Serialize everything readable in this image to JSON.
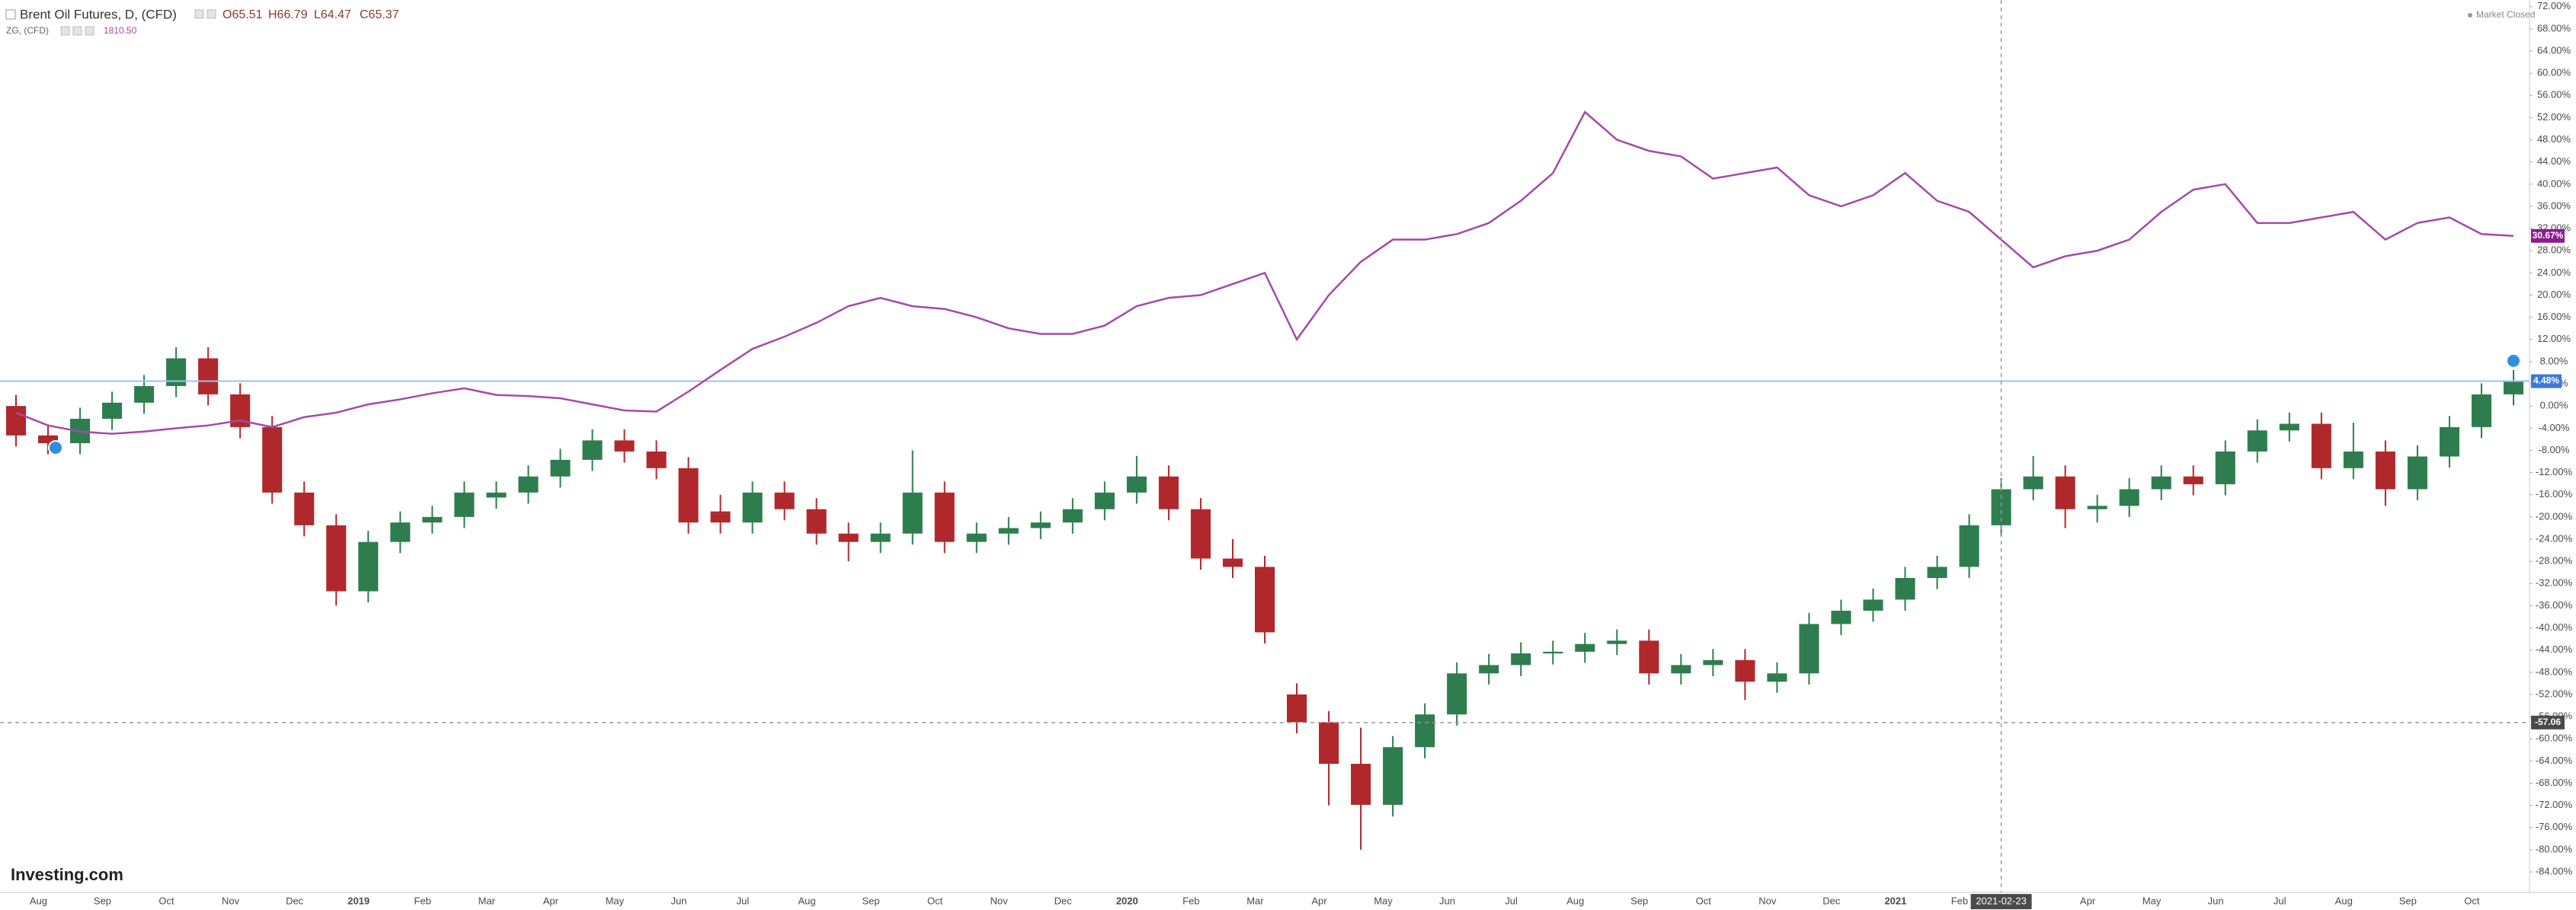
{
  "chart_data": {
    "type": "candlestick",
    "status": "Market Closed",
    "watermark": "Investing.com",
    "crosshair": {
      "y": -57.06,
      "x_label": "2021-02-23"
    },
    "categories": [
      null,
      "Aug",
      null,
      "Sep",
      null,
      "Oct",
      null,
      "Nov",
      null,
      "Dec",
      null,
      "2019",
      null,
      "Feb",
      null,
      "Mar",
      null,
      "Apr",
      null,
      "May",
      null,
      "Jun",
      null,
      "Jul",
      null,
      "Aug",
      null,
      "Sep",
      null,
      "Oct",
      null,
      "Nov",
      null,
      "Dec",
      null,
      "2020",
      null,
      "Feb",
      null,
      "Mar",
      null,
      "Apr",
      null,
      "May",
      null,
      "Jun",
      null,
      "Jul",
      null,
      "Aug",
      null,
      "Sep",
      null,
      "Oct",
      null,
      "Nov",
      null,
      "Dec",
      null,
      "2021",
      null,
      "Feb",
      null,
      null,
      null,
      "Apr",
      null,
      "May",
      null,
      "Jun",
      null,
      "Jul",
      null,
      "Aug",
      null,
      "Sep",
      null,
      "Oct",
      null
    ],
    "ylim": [
      -87.7,
      73.2
    ],
    "yticks": [
      {
        "value": 72,
        "label": "72.00%"
      },
      {
        "value": 68,
        "label": "68.00%"
      },
      {
        "value": 64,
        "label": "64.00%"
      },
      {
        "value": 60,
        "label": "60.00%"
      },
      {
        "value": 56,
        "label": "56.00%"
      },
      {
        "value": 52,
        "label": "52.00%"
      },
      {
        "value": 48,
        "label": "48.00%"
      },
      {
        "value": 44,
        "label": "44.00%"
      },
      {
        "value": 40,
        "label": "40.00%"
      },
      {
        "value": 36,
        "label": "36.00%"
      },
      {
        "value": 32,
        "label": "32.00%"
      },
      {
        "value": 28,
        "label": "28.00%"
      },
      {
        "value": 24,
        "label": "24.00%"
      },
      {
        "value": 20,
        "label": "20.00%"
      },
      {
        "value": 16,
        "label": "16.00%"
      },
      {
        "value": 12,
        "label": "12.00%"
      },
      {
        "value": 8,
        "label": "8.00%"
      },
      {
        "value": 4,
        "label": "4.00%"
      },
      {
        "value": 0,
        "label": "0.00%"
      },
      {
        "value": -4,
        "label": "-4.00%"
      },
      {
        "value": -8,
        "label": "-8.00%"
      },
      {
        "value": -12,
        "label": "-12.00%"
      },
      {
        "value": -16,
        "label": "-16.00%"
      },
      {
        "value": -20,
        "label": "-20.00%"
      },
      {
        "value": -24,
        "label": "-24.00%"
      },
      {
        "value": -28,
        "label": "-28.00%"
      },
      {
        "value": -32,
        "label": "-32.00%"
      },
      {
        "value": -36,
        "label": "-36.00%"
      },
      {
        "value": -40,
        "label": "-40.00%"
      },
      {
        "value": -44,
        "label": "-44.00%"
      },
      {
        "value": -48,
        "label": "-48.00%"
      },
      {
        "value": -52,
        "label": "-52.00%"
      },
      {
        "value": -56,
        "label": "-56.00%"
      },
      {
        "value": -60,
        "label": "-60.00%"
      },
      {
        "value": -64,
        "label": "-64.00%"
      },
      {
        "value": -68,
        "label": "-68.00%"
      },
      {
        "value": -72,
        "label": "-72.00%"
      },
      {
        "value": -76,
        "label": "-76.00%"
      },
      {
        "value": -80,
        "label": "-80.00%"
      },
      {
        "value": -84,
        "label": "-84.00%"
      }
    ],
    "grid": false,
    "series": [
      {
        "name": "Brent Oil Futures, D, (CFD)",
        "type": "candlestick",
        "up_color": "#2e7d4f",
        "down_color": "#b0282c",
        "line_color": "#9cc3e8",
        "badge_color": "#3b78d8",
        "legend_values": [
          "O65.51",
          "H66.79",
          "L64.47",
          "C65.37"
        ],
        "last_label": "4.48%",
        "ohlc": [
          [
            0,
            2,
            -7.3,
            -5.3
          ],
          [
            -5.3,
            -3.3,
            -8.7,
            -6.7
          ],
          [
            -6.7,
            -0.3,
            -8.7,
            -2.3
          ],
          [
            -2.3,
            2.6,
            -4.3,
            0.6
          ],
          [
            0.6,
            5.6,
            -1.4,
            3.6
          ],
          [
            3.6,
            10.6,
            1.6,
            8.6
          ],
          [
            8.6,
            10.6,
            0.1,
            2.1
          ],
          [
            2.1,
            4.1,
            -5.8,
            -3.8
          ],
          [
            -3.8,
            -1.8,
            -17.6,
            -15.6
          ],
          [
            -15.6,
            -13.6,
            -23.5,
            -21.5
          ],
          [
            -21.5,
            -19.5,
            -36,
            -33.4
          ],
          [
            -33.4,
            -22.5,
            -35.4,
            -24.5
          ],
          [
            -24.5,
            -19,
            -26.5,
            -21
          ],
          [
            -21,
            -18,
            -23,
            -20
          ],
          [
            -20,
            -13.6,
            -22,
            -15.6
          ],
          [
            -16.5,
            -13.6,
            -18.5,
            -15.6
          ],
          [
            -15.6,
            -10.7,
            -17.6,
            -12.7
          ],
          [
            -12.7,
            -7.7,
            -14.7,
            -9.7
          ],
          [
            -9.7,
            -4.2,
            -11.7,
            -6.2
          ],
          [
            -6.2,
            -4.2,
            -10.2,
            -8.2
          ],
          [
            -8.2,
            -6.2,
            -13.2,
            -11.2
          ],
          [
            -11.2,
            -9.2,
            -23,
            -21
          ],
          [
            -19,
            -16,
            -23,
            -21
          ],
          [
            -21,
            -13.6,
            -23,
            -15.6
          ],
          [
            -15.6,
            -13.6,
            -20.6,
            -18.6
          ],
          [
            -18.6,
            -16.6,
            -25,
            -23
          ],
          [
            -23,
            -21,
            -28,
            -24.5
          ],
          [
            -24.5,
            -21,
            -26.5,
            -23
          ],
          [
            -23,
            -8,
            -25,
            -15.6
          ],
          [
            -15.6,
            -13.6,
            -26.5,
            -24.5
          ],
          [
            -24.5,
            -21,
            -26.5,
            -23
          ],
          [
            -23,
            -20,
            -25,
            -22
          ],
          [
            -22,
            -19,
            -24,
            -21
          ],
          [
            -21,
            -16.6,
            -23,
            -18.6
          ],
          [
            -18.6,
            -13.6,
            -20.6,
            -15.6
          ],
          [
            -15.6,
            -9,
            -17.6,
            -12.7
          ],
          [
            -12.7,
            -10.7,
            -20.6,
            -18.6
          ],
          [
            -18.6,
            -16.6,
            -29.5,
            -27.5
          ],
          [
            -27.5,
            -24,
            -31,
            -29
          ],
          [
            -29,
            -27,
            -42.8,
            -40.8
          ],
          [
            -52,
            -50,
            -59,
            -57
          ],
          [
            -57,
            -55,
            -72,
            -64.5
          ],
          [
            -64.5,
            -58,
            -80,
            -71.9
          ],
          [
            -71.9,
            -59.5,
            -74,
            -61.5
          ],
          [
            -61.5,
            -53.6,
            -63.5,
            -55.6
          ],
          [
            -55.6,
            -46.2,
            -57.6,
            -48.2
          ],
          [
            -48.2,
            -44.7,
            -50.2,
            -46.7
          ],
          [
            -46.7,
            -42.6,
            -48.7,
            -44.6
          ],
          [
            -44.6,
            -42.3,
            -46.6,
            -44.3
          ],
          [
            -44.3,
            -40.9,
            -46.3,
            -42.9
          ],
          [
            -42.9,
            -40.3,
            -44.9,
            -42.3
          ],
          [
            -42.3,
            -40.3,
            -50.2,
            -48.2
          ],
          [
            -48.2,
            -44.7,
            -50.2,
            -46.7
          ],
          [
            -46.7,
            -43.8,
            -48.7,
            -45.8
          ],
          [
            -45.8,
            -43.8,
            -53,
            -49.7
          ],
          [
            -49.7,
            -46.2,
            -51.7,
            -48.2
          ],
          [
            -48.2,
            -37.3,
            -50.2,
            -39.3
          ],
          [
            -39.3,
            -34.9,
            -41.3,
            -36.9
          ],
          [
            -36.9,
            -32.9,
            -38.9,
            -34.9
          ],
          [
            -34.9,
            -29,
            -36.9,
            -31
          ],
          [
            -31,
            -27,
            -33,
            -29
          ],
          [
            -29,
            -19.5,
            -31,
            -21.5
          ],
          [
            -21.5,
            -13,
            -23.5,
            -15
          ],
          [
            -15,
            -9,
            -17,
            -12.7
          ],
          [
            -12.7,
            -10.7,
            -22,
            -18.6
          ],
          [
            -18.6,
            -16,
            -21,
            -18
          ],
          [
            -18,
            -13,
            -20,
            -15
          ],
          [
            -15,
            -10.7,
            -17,
            -12.7
          ],
          [
            -12.7,
            -10.7,
            -16.1,
            -14.1
          ],
          [
            -14.1,
            -6.2,
            -16.1,
            -8.2
          ],
          [
            -8.2,
            -2.4,
            -10.2,
            -4.4
          ],
          [
            -4.4,
            -1.2,
            -6.4,
            -3.2
          ],
          [
            -3.2,
            -1.2,
            -13.2,
            -11.2
          ],
          [
            -11.2,
            -3,
            -13.2,
            -8.2
          ],
          [
            -8.2,
            -6.2,
            -18,
            -15
          ],
          [
            -15,
            -7.1,
            -17,
            -9.1
          ],
          [
            -9.1,
            -1.8,
            -11.1,
            -3.8
          ],
          [
            -3.8,
            4.1,
            -5.8,
            2.1
          ],
          [
            2.1,
            6.5,
            0.1,
            4.48
          ]
        ]
      },
      {
        "name": "ZG, (CFD)",
        "type": "line",
        "color": "#a54aa8",
        "badge_color": "#8e1b8e",
        "legend_values": [
          "1810.50"
        ],
        "last_label": "30.67%",
        "values": [
          -1.2,
          -3.5,
          -4.6,
          -5.0,
          -4.6,
          -4.0,
          -3.5,
          -2.6,
          -3.8,
          -2.0,
          -1.2,
          0.3,
          1.2,
          2.3,
          3.2,
          2.0,
          1.8,
          1.4,
          0.3,
          -0.8,
          -1.0,
          2.6,
          6.5,
          10.3,
          12.5,
          15,
          18,
          19.5,
          18,
          17.5,
          16,
          14,
          13,
          13,
          14.5,
          18,
          19.5,
          20,
          22,
          24,
          12,
          20,
          26,
          30,
          30,
          31,
          33,
          37,
          42,
          53,
          48,
          46,
          45,
          41,
          42,
          43,
          38,
          36,
          38,
          42,
          37,
          35,
          30,
          25,
          27,
          28,
          30,
          35,
          39,
          40,
          33,
          33,
          34,
          35,
          30,
          33,
          34,
          31,
          30.67
        ]
      }
    ]
  }
}
